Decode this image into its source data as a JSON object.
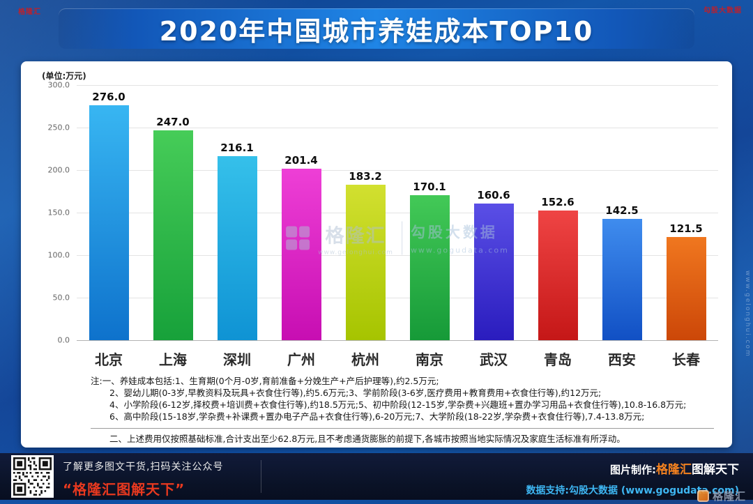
{
  "header": {
    "title": "2020年中国城市养娃成本TOP10"
  },
  "stamps": {
    "top_left": "格隆汇",
    "top_right": "勾股大数据"
  },
  "chart": {
    "unit_label": "(单位:万元)",
    "watermark": {
      "brand": "格隆汇",
      "brand_url": "www.gelonghui.com",
      "partner": "勾股大数据",
      "partner_url": "www.gogudata.com"
    },
    "side_watermark": "www.gelonghui.com"
  },
  "chart_data": {
    "type": "bar",
    "title": "2020年中国城市养娃成本TOP10",
    "unit": "万元",
    "categories": [
      "北京",
      "上海",
      "深圳",
      "广州",
      "杭州",
      "南京",
      "武汉",
      "青岛",
      "西安",
      "长春"
    ],
    "values": [
      276.0,
      247.0,
      216.1,
      201.4,
      183.2,
      170.1,
      160.6,
      152.6,
      142.5,
      121.5
    ],
    "bar_colors": [
      [
        "#38b6f2",
        "#0e72cc"
      ],
      [
        "#46cc58",
        "#17a13a"
      ],
      [
        "#35c0ea",
        "#0f93d4"
      ],
      [
        "#ee3fd6",
        "#c70eb2"
      ],
      [
        "#d2e030",
        "#a6c400"
      ],
      [
        "#43c957",
        "#169a38"
      ],
      [
        "#5a4fe6",
        "#2a1cbe"
      ],
      [
        "#ef4444",
        "#c51717"
      ],
      [
        "#3f8cee",
        "#1150c4"
      ],
      [
        "#f0771f",
        "#cc4708"
      ]
    ],
    "ylim": [
      0,
      300
    ],
    "yticks": [
      0,
      50,
      100,
      150,
      200,
      250,
      300
    ],
    "grid": true,
    "legend": false
  },
  "notes": {
    "section1": [
      "注:一、养娃成本包括:1、生育期(0个月-0岁,育前准备+分娩生产+产后护理等),约2.5万元;",
      "2、婴幼儿期(0-3岁,早教资料及玩具+衣食住行等),约5.6万元;3、学前阶段(3-6岁,医疗费用+教育费用+衣食住行等),约12万元;",
      "4、小学阶段(6-12岁,择校费+培训费+衣食住行等),约18.5万元;5、初中阶段(12-15岁,学杂费+兴趣班+置办学习用品+衣食住行等),10.8-16.8万元;",
      "6、高中阶段(15-18岁,学杂费+补课费+置办电子产品+衣食住行等),6-20万元;7、大学阶段(18-22岁,学杂费+衣食住行等),7.4-13.8万元;"
    ],
    "section2": "二、上述费用仅按照基础标准,合计支出至少62.8万元,且不考虑通货膨胀的前提下,各城市按照当地实际情况及家庭生活标准有所浮动。"
  },
  "footer": {
    "qr_caption": "了解更多图文干货,扫码关注公众号",
    "brand_quote": "“格隆汇图解天下”",
    "credit_label": "图片制作:",
    "credit_brand_orange": "格隆汇",
    "credit_brand_suffix": "图解天下",
    "data_support": "数据支持:勾股大数据 (www.gogudata.com)",
    "corner_brand": "格隆汇"
  }
}
